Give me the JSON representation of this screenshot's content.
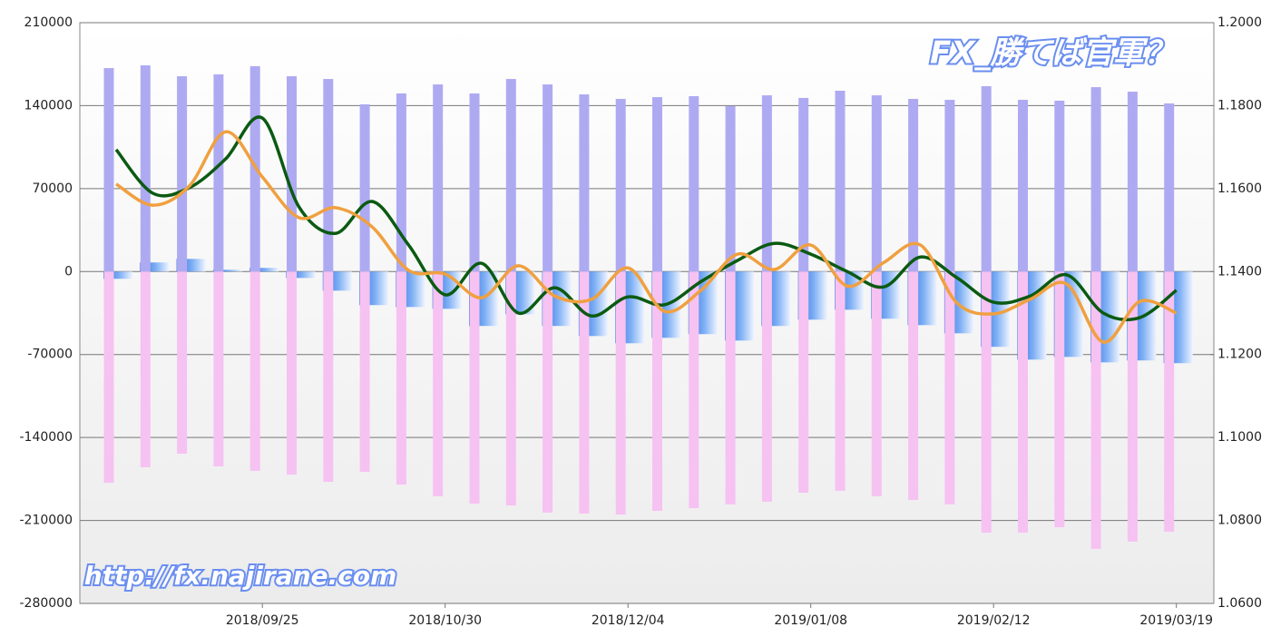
{
  "chart_data": {
    "type": "bar-line",
    "annotations": [
      "FX_勝てば官軍？",
      "http://fx.najirane.com"
    ],
    "categories": [
      null,
      null,
      null,
      null,
      "2018/09/25",
      null,
      null,
      null,
      null,
      "2018/10/30",
      null,
      null,
      null,
      null,
      "2018/12/04",
      null,
      null,
      null,
      null,
      "2019/01/08",
      null,
      null,
      null,
      null,
      "2019/02/12",
      null,
      null,
      null,
      null,
      "2019/03/19"
    ],
    "ylim": [
      -280000,
      210000
    ],
    "yticks": [
      210000,
      140000,
      70000,
      0,
      -70000,
      -140000,
      -210000,
      -280000
    ],
    "y2lim": [
      1.06,
      1.2
    ],
    "y2ticks": [
      {
        "value": 1.2,
        "label": "1.2000"
      },
      {
        "value": 1.18,
        "label": "1.1800"
      },
      {
        "value": 1.16,
        "label": "1.1600"
      },
      {
        "value": 1.14,
        "label": "1.1400"
      },
      {
        "value": 1.12,
        "label": "1.1200"
      },
      {
        "value": 1.1,
        "label": "1.1000"
      },
      {
        "value": 1.08,
        "label": "1.0800"
      },
      {
        "value": 1.06,
        "label": "1.0600"
      }
    ],
    "grid": true,
    "series": [
      {
        "type": "bar",
        "color": "#3a7fe8",
        "values": [
          -6100,
          7700,
          10700,
          1500,
          3100,
          -5400,
          -16100,
          -28300,
          -29900,
          -31400,
          -45900,
          -36000,
          -45900,
          -54400,
          -60500,
          -55900,
          -52800,
          -58200,
          -45900,
          -40600,
          -32200,
          -39800,
          -45200,
          -52100,
          -63500,
          -74300,
          -72000,
          -76600,
          -75000,
          -77300
        ]
      },
      {
        "type": "bar",
        "color": "#aeaaf2",
        "values": [
          171700,
          174000,
          164800,
          166400,
          173300,
          164800,
          162500,
          141100,
          150300,
          157900,
          150300,
          162500,
          157900,
          149500,
          145700,
          147200,
          148000,
          139600,
          148700,
          146500,
          152600,
          148700,
          145700,
          144900,
          156400,
          144900,
          144200,
          155600,
          151800,
          141900
        ]
      },
      {
        "type": "bar",
        "color": "#f6c2f2",
        "values": [
          -178200,
          -165100,
          -153700,
          -164400,
          -168200,
          -171300,
          -177400,
          -169000,
          -179700,
          -189600,
          -195800,
          -197300,
          -203400,
          -204200,
          -205000,
          -201900,
          -199600,
          -196500,
          -194200,
          -186600,
          -185000,
          -189600,
          -192700,
          -196500,
          -220300,
          -220300,
          -215700,
          -234000,
          -227900,
          -219500
        ]
      },
      {
        "type": "line",
        "axis": "y2",
        "color": "#0b5a12",
        "values": [
          1.1694,
          1.1589,
          1.1602,
          1.1672,
          1.177,
          1.1556,
          1.1492,
          1.1569,
          1.1464,
          1.1344,
          1.142,
          1.13,
          1.1361,
          1.1293,
          1.1339,
          1.132,
          1.1376,
          1.1427,
          1.1468,
          1.1442,
          1.14,
          1.1363,
          1.1435,
          1.1385,
          1.1326,
          1.1341,
          1.1392,
          1.13,
          1.1289,
          1.1355
        ]
      },
      {
        "type": "line",
        "axis": "y2",
        "color": "#f0a040",
        "values": [
          1.1611,
          1.156,
          1.1606,
          1.1737,
          1.1628,
          1.153,
          1.1554,
          1.1508,
          1.1403,
          1.1394,
          1.1337,
          1.1414,
          1.1341,
          1.1333,
          1.1409,
          1.1304,
          1.1355,
          1.1442,
          1.1405,
          1.1464,
          1.1365,
          1.1422,
          1.1464,
          1.1324,
          1.1298,
          1.1333,
          1.137,
          1.123,
          1.1328,
          1.13
        ]
      }
    ]
  }
}
